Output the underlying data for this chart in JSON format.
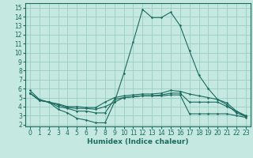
{
  "title": "",
  "xlabel": "Humidex (Indice chaleur)",
  "ylabel": "",
  "bg_color": "#c5e8e0",
  "grid_color": "#9accc2",
  "line_color": "#1a6b60",
  "xlim": [
    -0.5,
    23.5
  ],
  "ylim": [
    1.8,
    15.5
  ],
  "yticks": [
    2,
    3,
    4,
    5,
    6,
    7,
    8,
    9,
    10,
    11,
    12,
    13,
    14,
    15
  ],
  "xticks": [
    0,
    1,
    2,
    3,
    4,
    5,
    6,
    7,
    8,
    9,
    10,
    11,
    12,
    13,
    14,
    15,
    16,
    17,
    18,
    19,
    20,
    21,
    22,
    23
  ],
  "lines": [
    {
      "x": [
        0,
        1,
        2,
        3,
        4,
        5,
        6,
        7,
        8,
        9,
        10,
        11,
        12,
        13,
        14,
        15,
        16,
        17,
        18,
        19,
        20,
        21,
        22,
        23
      ],
      "y": [
        5.8,
        4.8,
        4.5,
        3.7,
        3.3,
        2.7,
        2.5,
        2.2,
        2.2,
        4.5,
        7.7,
        11.2,
        14.8,
        13.9,
        13.9,
        14.5,
        13.0,
        10.2,
        7.5,
        6.0,
        4.8,
        4.2,
        3.3,
        2.9
      ]
    },
    {
      "x": [
        0,
        1,
        2,
        3,
        4,
        5,
        6,
        7,
        8,
        9,
        10,
        11,
        12,
        13,
        14,
        15,
        16,
        17,
        18,
        19,
        20,
        21,
        22,
        23
      ],
      "y": [
        5.5,
        4.7,
        4.5,
        4.3,
        4.0,
        4.0,
        3.9,
        3.9,
        4.5,
        5.0,
        5.2,
        5.3,
        5.4,
        5.4,
        5.5,
        5.8,
        5.7,
        5.4,
        5.2,
        5.0,
        4.8,
        4.4,
        3.5,
        2.9
      ]
    },
    {
      "x": [
        0,
        1,
        2,
        3,
        4,
        5,
        6,
        7,
        8,
        9,
        10,
        11,
        12,
        13,
        14,
        15,
        16,
        17,
        18,
        19,
        20,
        21,
        22,
        23
      ],
      "y": [
        5.5,
        4.7,
        4.5,
        4.2,
        3.9,
        3.8,
        3.8,
        3.7,
        4.0,
        4.5,
        5.0,
        5.1,
        5.2,
        5.2,
        5.3,
        5.5,
        5.5,
        4.5,
        4.5,
        4.5,
        4.5,
        4.0,
        3.5,
        3.0
      ]
    },
    {
      "x": [
        0,
        1,
        2,
        3,
        4,
        5,
        6,
        7,
        8,
        9,
        10,
        11,
        12,
        13,
        14,
        15,
        16,
        17,
        18,
        19,
        20,
        21,
        22,
        23
      ],
      "y": [
        5.5,
        4.7,
        4.5,
        4.0,
        3.8,
        3.5,
        3.5,
        3.3,
        3.3,
        4.8,
        5.0,
        5.1,
        5.2,
        5.2,
        5.2,
        5.3,
        5.3,
        3.2,
        3.2,
        3.2,
        3.2,
        3.2,
        3.0,
        2.8
      ]
    }
  ],
  "tick_fontsize": 5.5,
  "xlabel_fontsize": 6.5,
  "xlabel_fontweight": "bold"
}
